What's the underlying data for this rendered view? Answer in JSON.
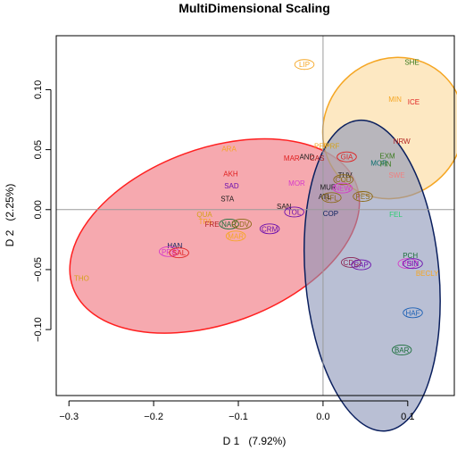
{
  "chart_data": {
    "type": "scatter",
    "title": "MultiDimensional Scaling",
    "xlabel": "D 1   (7.92%)",
    "ylabel": "D 2   (2.25%)",
    "xlim": [
      -0.315,
      0.155
    ],
    "ylim": [
      -0.155,
      0.145
    ],
    "x_ticks": [
      -0.3,
      -0.2,
      -0.1,
      0.0,
      0.1
    ],
    "x_tick_labels": [
      "−0.3",
      "−0.2",
      "−0.1",
      "0.0",
      "0.1"
    ],
    "y_ticks": [
      -0.1,
      -0.05,
      0.0,
      0.05,
      0.1
    ],
    "y_tick_labels": [
      "−0.10",
      "−0.05",
      "0.00",
      "0.05",
      "0.10"
    ],
    "reference_lines": {
      "x": 0,
      "y": 0
    },
    "ellipses": [
      {
        "center": [
          -0.128,
          -0.022
        ],
        "rx": 0.178,
        "ry": 0.073,
        "angle_deg": 20,
        "fill": "#f0707a",
        "stroke": "#ff2020"
      },
      {
        "center": [
          0.083,
          0.068
        ],
        "rx": 0.086,
        "ry": 0.057,
        "angle_deg": 45,
        "fill": "#fbd99a",
        "stroke": "#f5a623"
      },
      {
        "center": [
          0.058,
          -0.055
        ],
        "rx": 0.079,
        "ry": 0.13,
        "angle_deg": 5,
        "fill": "#8b95b7",
        "stroke": "#0a1f5e"
      }
    ],
    "points": [
      {
        "label": "LIP",
        "x": -0.022,
        "y": 0.121,
        "color": "#f5a623",
        "circled": true
      },
      {
        "label": "SHE",
        "x": 0.105,
        "y": 0.123,
        "color": "#3a7a1e",
        "circled": false
      },
      {
        "label": "MIN",
        "x": 0.085,
        "y": 0.092,
        "color": "#f5a623",
        "circled": false
      },
      {
        "label": "ICE",
        "x": 0.107,
        "y": 0.09,
        "color": "#e02020",
        "circled": false
      },
      {
        "label": "NRW",
        "x": 0.093,
        "y": 0.057,
        "color": "#b22222",
        "circled": false
      },
      {
        "label": "PEP",
        "x": -0.002,
        "y": 0.053,
        "color": "#f5a623",
        "circled": false
      },
      {
        "label": "PRF",
        "x": 0.011,
        "y": 0.053,
        "color": "#d4a017",
        "circled": false
      },
      {
        "label": "ARA",
        "x": -0.111,
        "y": 0.051,
        "color": "#f5a623",
        "circled": false
      },
      {
        "label": "MAR",
        "x": -0.037,
        "y": 0.043,
        "color": "#e02020",
        "circled": false
      },
      {
        "label": "AND",
        "x": -0.019,
        "y": 0.044,
        "color": "#1a1a1a",
        "circled": false
      },
      {
        "label": "CAS",
        "x": -0.007,
        "y": 0.043,
        "color": "#b22222",
        "circled": false
      },
      {
        "label": "GIA",
        "x": 0.028,
        "y": 0.044,
        "color": "#e02020",
        "circled": true
      },
      {
        "label": "EXM",
        "x": 0.076,
        "y": 0.045,
        "color": "#3a7a1e",
        "circled": false
      },
      {
        "label": "MOR",
        "x": 0.066,
        "y": 0.039,
        "color": "#0a6e6e",
        "circled": false
      },
      {
        "label": "FIN",
        "x": 0.074,
        "y": 0.038,
        "color": "#3a7a1e",
        "circled": false
      },
      {
        "label": "AKH",
        "x": -0.109,
        "y": 0.03,
        "color": "#e02020",
        "circled": false
      },
      {
        "label": "SWE",
        "x": 0.087,
        "y": 0.029,
        "color": "#f08080",
        "circled": false
      },
      {
        "label": "THV",
        "x": 0.026,
        "y": 0.029,
        "color": "#1a1a1a",
        "circled": false
      },
      {
        "label": "COD",
        "x": 0.024,
        "y": 0.025,
        "color": "#8b6914",
        "circled": true
      },
      {
        "label": "SAD",
        "x": -0.108,
        "y": 0.02,
        "color": "#6a0dad",
        "circled": false
      },
      {
        "label": "MOR",
        "x": -0.031,
        "y": 0.022,
        "color": "#d63ac9",
        "circled": false
      },
      {
        "label": "MUR",
        "x": 0.006,
        "y": 0.019,
        "color": "#1a1a1a",
        "circled": false
      },
      {
        "label": "NEW",
        "x": 0.023,
        "y": 0.018,
        "color": "#d63ac9",
        "circled": true
      },
      {
        "label": "ATL",
        "x": 0.002,
        "y": 0.011,
        "color": "#1a1a1a",
        "circled": false
      },
      {
        "label": "BFL",
        "x": 0.01,
        "y": 0.01,
        "color": "#8b6914",
        "circled": true
      },
      {
        "label": "PES",
        "x": 0.047,
        "y": 0.011,
        "color": "#8b6914",
        "circled": true
      },
      {
        "label": "STA",
        "x": -0.113,
        "y": 0.009,
        "color": "#1a1a1a",
        "circled": false
      },
      {
        "label": "SAN",
        "x": -0.046,
        "y": 0.003,
        "color": "#1a1a1a",
        "circled": false
      },
      {
        "label": "TOL",
        "x": -0.034,
        "y": -0.002,
        "color": "#6a0dad",
        "circled": true
      },
      {
        "label": "COP",
        "x": 0.009,
        "y": -0.003,
        "color": "#0a1f5e",
        "circled": false
      },
      {
        "label": "FEL",
        "x": 0.086,
        "y": -0.004,
        "color": "#2ecc71",
        "circled": false
      },
      {
        "label": "QUA",
        "x": -0.14,
        "y": -0.004,
        "color": "#d4a017",
        "circled": false
      },
      {
        "label": "TPA",
        "x": -0.139,
        "y": -0.01,
        "color": "#f5a623",
        "circled": false
      },
      {
        "label": "FRE",
        "x": -0.131,
        "y": -0.012,
        "color": "#b22222",
        "circled": false
      },
      {
        "label": "NAR",
        "x": -0.111,
        "y": -0.012,
        "color": "#1a6e3a",
        "circled": true
      },
      {
        "label": "CDV",
        "x": -0.096,
        "y": -0.012,
        "color": "#8b6914",
        "circled": true
      },
      {
        "label": "CRM",
        "x": -0.063,
        "y": -0.016,
        "color": "#6a0dad",
        "circled": true
      },
      {
        "label": "MAR",
        "x": -0.103,
        "y": -0.022,
        "color": "#f5a623",
        "circled": true
      },
      {
        "label": "HAN",
        "x": -0.175,
        "y": -0.03,
        "color": "#0a1f5e",
        "circled": false
      },
      {
        "label": "PRB",
        "x": -0.182,
        "y": -0.035,
        "color": "#d63ac9",
        "circled": true
      },
      {
        "label": "SAL",
        "x": -0.17,
        "y": -0.036,
        "color": "#e02020",
        "circled": true
      },
      {
        "label": "PCH",
        "x": 0.103,
        "y": -0.038,
        "color": "#1a6e3a",
        "circled": false
      },
      {
        "label": "CDC",
        "x": 0.033,
        "y": -0.044,
        "color": "#8b2252",
        "circled": true
      },
      {
        "label": "CAP",
        "x": 0.045,
        "y": -0.046,
        "color": "#6a0dad",
        "circled": true
      },
      {
        "label": "PHI",
        "x": 0.1,
        "y": -0.045,
        "color": "#d63ac9",
        "circled": true
      },
      {
        "label": "SIN",
        "x": 0.106,
        "y": -0.045,
        "color": "#6a0dad",
        "circled": true
      },
      {
        "label": "BECLY",
        "x": 0.123,
        "y": -0.053,
        "color": "#f5a623",
        "circled": false
      },
      {
        "label": "THO",
        "x": -0.285,
        "y": -0.057,
        "color": "#d4a017",
        "circled": false
      },
      {
        "label": "HAF",
        "x": 0.106,
        "y": -0.086,
        "color": "#1a5fb4",
        "circled": true
      },
      {
        "label": "BAR",
        "x": 0.093,
        "y": -0.117,
        "color": "#1a6e3a",
        "circled": true
      }
    ]
  }
}
